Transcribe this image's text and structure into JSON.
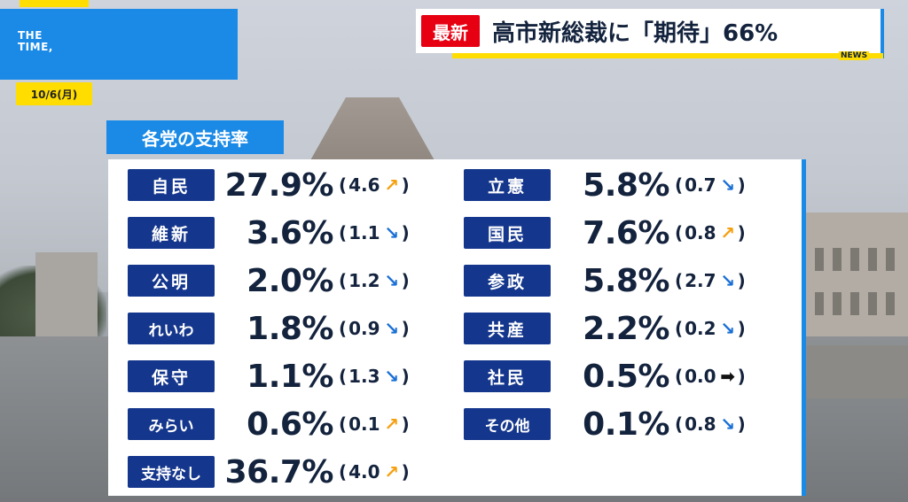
{
  "logo": {
    "line1": "THE",
    "line2": "TIME,"
  },
  "date": "10/6(月)",
  "headline": {
    "badge": "最新",
    "text": "高市新総裁に「期待」66%",
    "news_label": "NEWS"
  },
  "panel": {
    "title": "各党の支持率"
  },
  "colors": {
    "party_bg": "#14368c",
    "accent_blue": "#1a8ae6",
    "accent_yellow": "#ffdd00",
    "breaking_red": "#e60012",
    "arrow_up": "#f5a010",
    "arrow_down": "#1a6fd6"
  },
  "left_column": [
    {
      "party": "自民",
      "pct": "27.9%",
      "change": "4.6",
      "direction": "up"
    },
    {
      "party": "維新",
      "pct": "3.6%",
      "change": "1.1",
      "direction": "down"
    },
    {
      "party": "公明",
      "pct": "2.0%",
      "change": "1.2",
      "direction": "down"
    },
    {
      "party": "れいわ",
      "pct": "1.8%",
      "change": "0.9",
      "direction": "down"
    },
    {
      "party": "保守",
      "pct": "1.1%",
      "change": "1.3",
      "direction": "down"
    },
    {
      "party": "みらい",
      "pct": "0.6%",
      "change": "0.1",
      "direction": "up"
    },
    {
      "party": "支持なし",
      "pct": "36.7%",
      "change": "4.0",
      "direction": "up"
    }
  ],
  "right_column": [
    {
      "party": "立憲",
      "pct": "5.8%",
      "change": "0.7",
      "direction": "down"
    },
    {
      "party": "国民",
      "pct": "7.6%",
      "change": "0.8",
      "direction": "up"
    },
    {
      "party": "参政",
      "pct": "5.8%",
      "change": "2.7",
      "direction": "down"
    },
    {
      "party": "共産",
      "pct": "2.2%",
      "change": "0.2",
      "direction": "down"
    },
    {
      "party": "社民",
      "pct": "0.5%",
      "change": "0.0",
      "direction": "flat"
    },
    {
      "party": "その他",
      "pct": "0.1%",
      "change": "0.8",
      "direction": "down"
    }
  ]
}
